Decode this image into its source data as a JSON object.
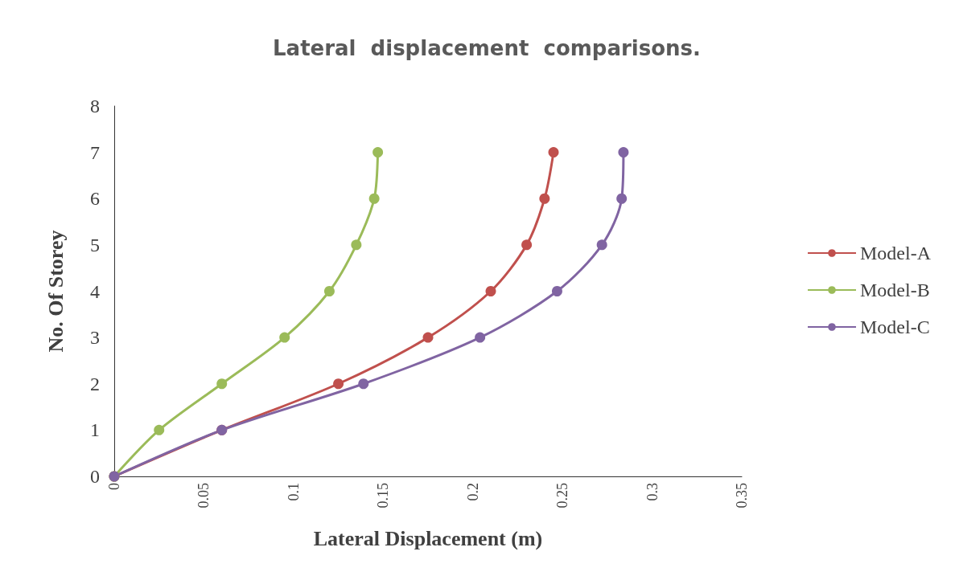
{
  "chart_data": {
    "type": "line",
    "title": "Lateral  displacement  comparisons.",
    "xlabel": "Lateral Displacement (m)",
    "ylabel": "No. Of Storey",
    "series": [
      {
        "name": "Model-A",
        "color": "#c0504d",
        "x": [
          0,
          0.06,
          0.125,
          0.175,
          0.21,
          0.23,
          0.24,
          0.245
        ],
        "values": [
          0,
          1,
          2,
          3,
          4,
          5,
          6,
          7
        ]
      },
      {
        "name": "Model-B",
        "color": "#9bbb59",
        "x": [
          0,
          0.025,
          0.06,
          0.095,
          0.12,
          0.135,
          0.145,
          0.147
        ],
        "values": [
          0,
          1,
          2,
          3,
          4,
          5,
          6,
          7
        ]
      },
      {
        "name": "Model-C",
        "color": "#8064a2",
        "x": [
          0,
          0.06,
          0.139,
          0.204,
          0.247,
          0.272,
          0.283,
          0.284
        ],
        "values": [
          0,
          1,
          2,
          3,
          4,
          5,
          6,
          7
        ]
      }
    ],
    "xlim": [
      0,
      0.35
    ],
    "xticks": [
      0,
      0.05,
      0.1,
      0.15,
      0.2,
      0.25,
      0.3,
      0.35
    ],
    "ylim": [
      0,
      8
    ],
    "yticks": [
      0,
      1,
      2,
      3,
      4,
      5,
      6,
      7,
      8
    ],
    "grid": false,
    "legend": "right",
    "marker": "circle",
    "line_style": "solid"
  }
}
